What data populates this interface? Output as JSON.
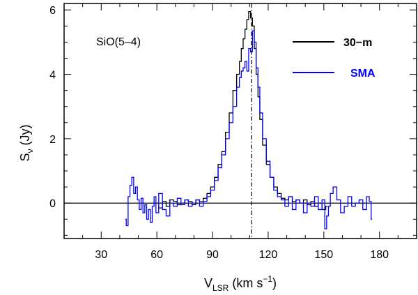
{
  "chart_data": {
    "type": "line",
    "title": "",
    "annotation": "SiO(5–4)",
    "xlabel": {
      "main": "V",
      "sub": "LSR",
      "units_pre": " (km s",
      "units_sup": "−1",
      "units_post": ")"
    },
    "ylabel": {
      "main": "S",
      "sub": "ν",
      "units": " (Jy)"
    },
    "xlim": [
      10,
      200
    ],
    "ylim": [
      -1.1,
      6.2
    ],
    "x_ticks": [
      30,
      60,
      90,
      120,
      150,
      180
    ],
    "y_ticks": [
      0,
      2,
      4,
      6
    ],
    "x_tick_labels": [
      "30",
      "60",
      "90",
      "120",
      "150",
      "180"
    ],
    "y_tick_labels": [
      "0",
      "2",
      "4",
      "6"
    ],
    "zero_line": 0,
    "vline": 111,
    "series": [
      {
        "name": "30-m",
        "color": "#000000",
        "x": [
          60,
          62,
          64,
          66,
          68,
          70,
          72,
          74,
          76,
          78,
          80,
          82,
          84,
          86,
          88,
          90,
          92,
          94,
          96,
          98,
          100,
          102,
          104,
          105,
          106,
          107,
          108,
          109,
          110,
          111,
          112,
          113,
          114,
          115,
          116,
          118,
          120,
          122,
          124,
          126,
          128,
          130,
          132,
          134,
          136,
          138,
          140,
          142,
          144,
          146,
          148,
          150,
          152
        ],
        "values": [
          0.0,
          -0.15,
          0.05,
          -0.1,
          0.1,
          0.05,
          -0.05,
          0.0,
          0.1,
          0.05,
          -0.05,
          0.1,
          0.05,
          0.15,
          0.3,
          0.5,
          0.8,
          1.2,
          1.6,
          2.2,
          2.8,
          3.5,
          4.0,
          4.4,
          4.8,
          5.1,
          5.4,
          5.7,
          5.95,
          5.75,
          5.5,
          4.8,
          4.0,
          3.3,
          2.6,
          1.8,
          1.2,
          0.8,
          0.5,
          0.3,
          0.15,
          0.1,
          0.2,
          0.05,
          0.1,
          0.0,
          0.1,
          -0.05,
          0.05,
          -0.1,
          0.0,
          -0.2,
          -0.1
        ]
      },
      {
        "name": "SMA",
        "color": "#0000ff",
        "x": [
          43,
          44,
          45,
          46,
          47,
          48,
          49,
          50,
          51,
          52,
          53,
          54,
          55,
          56,
          57,
          58,
          59,
          60,
          62,
          64,
          66,
          68,
          70,
          72,
          74,
          76,
          78,
          80,
          82,
          84,
          86,
          88,
          90,
          92,
          94,
          96,
          98,
          100,
          102,
          104,
          105,
          106,
          107,
          108,
          109,
          110,
          111,
          112,
          113,
          114,
          115,
          116,
          118,
          120,
          122,
          124,
          126,
          128,
          130,
          132,
          134,
          136,
          138,
          140,
          142,
          144,
          146,
          148,
          150,
          151,
          152,
          153,
          154,
          156,
          158,
          160,
          162,
          164,
          166,
          168,
          170,
          172,
          174,
          175,
          176
        ],
        "values": [
          -0.5,
          -0.7,
          0.2,
          0.55,
          0.8,
          0.3,
          0.5,
          0.1,
          -0.2,
          0.15,
          -0.3,
          -0.05,
          -0.5,
          -0.2,
          -0.6,
          -0.1,
          0.2,
          -0.3,
          0.3,
          -0.2,
          -0.4,
          0.0,
          -0.1,
          0.15,
          -0.05,
          0.1,
          -0.1,
          0.0,
          0.1,
          -0.1,
          0.05,
          0.2,
          0.4,
          0.7,
          1.1,
          1.5,
          2.0,
          2.5,
          3.0,
          3.6,
          3.9,
          4.1,
          4.2,
          4.4,
          4.1,
          4.8,
          4.7,
          5.35,
          5.0,
          4.2,
          3.6,
          2.8,
          2.0,
          1.3,
          0.8,
          0.4,
          0.2,
          0.1,
          -0.1,
          0.2,
          -0.2,
          0.1,
          0.0,
          -0.3,
          0.0,
          -0.1,
          0.2,
          -0.2,
          0.1,
          -0.8,
          -0.4,
          -0.1,
          0.3,
          0.5,
          0.1,
          -0.3,
          -0.1,
          0.2,
          -0.1,
          0.0,
          0.1,
          -0.2,
          0.2,
          0.05,
          -0.5
        ]
      }
    ],
    "legend": [
      {
        "label": "30−m",
        "color": "#000000"
      },
      {
        "label": "SMA",
        "color": "#0000ff"
      }
    ]
  }
}
